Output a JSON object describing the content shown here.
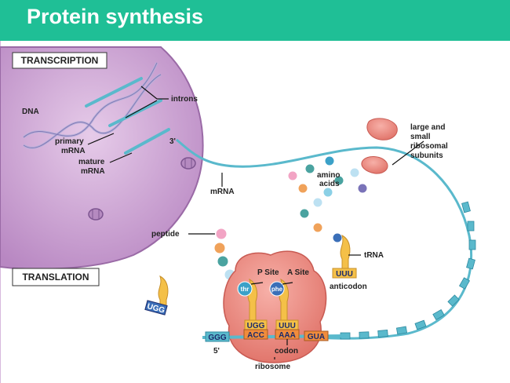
{
  "header": {
    "title": "Protein synthesis"
  },
  "sections": {
    "transcription": "TRANSCRIPTION",
    "translation": "TRANSLATION"
  },
  "labels": {
    "dna": "DNA",
    "introns": "introns",
    "primary_mrna_1": "primary",
    "primary_mrna_2": "mRNA",
    "mature_mrna_1": "mature",
    "mature_mrna_2": "mRNA",
    "three_prime": "3'",
    "mrna": "mRNA",
    "amino_acids_1": "amino",
    "amino_acids_2": "acids",
    "ribosomal_1": "large and",
    "ribosomal_2": "small",
    "ribosomal_3": "ribosomal",
    "ribosomal_4": "subunits",
    "peptide": "peptide",
    "trna": "tRNA",
    "anticodon": "anticodon",
    "p_site": "P Site",
    "a_site": "A Site",
    "codon": "codon",
    "five_prime": "5'",
    "ribosome": "ribosome"
  },
  "sequences": {
    "free_trna_1": "UUU",
    "free_trna_2": "UGG",
    "p_site_anticodon": "UGG",
    "p_site_codon": "ACC",
    "a_site_anticodon": "UUU",
    "a_site_codon": "AAA",
    "mrna_left": "GGG",
    "mrna_right": "GUA"
  },
  "amino_acids": {
    "p_site": "thr",
    "a_site": "phe"
  },
  "colors": {
    "header": "#1fbf96",
    "nucleus": "#c89ad0",
    "cell": "#d7b8dd",
    "mrna": "#5ab9cc",
    "ribosome": "#f08c84",
    "trna": "#f4c048"
  }
}
